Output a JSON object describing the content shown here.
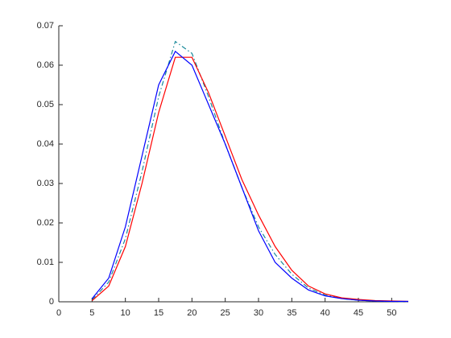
{
  "chart_data": {
    "type": "line",
    "x": [
      5,
      7.5,
      10,
      12.5,
      15,
      17.5,
      20,
      22.5,
      25,
      27.5,
      30,
      32.5,
      35,
      37.5,
      40,
      42.5,
      45,
      47.5,
      50,
      52.5
    ],
    "series": [
      {
        "color": "#1a8a9a",
        "style": "dashdot",
        "values": [
          0.0005,
          0.005,
          0.016,
          0.033,
          0.052,
          0.066,
          0.063,
          0.052,
          0.04,
          0.029,
          0.019,
          0.012,
          0.007,
          0.0035,
          0.0017,
          0.0008,
          0.0004,
          0.0002,
          0.0001,
          5e-05
        ]
      },
      {
        "color": "#ff0000",
        "style": "solid",
        "values": [
          0.0003,
          0.004,
          0.014,
          0.03,
          0.048,
          0.062,
          0.062,
          0.053,
          0.042,
          0.031,
          0.022,
          0.014,
          0.008,
          0.004,
          0.002,
          0.001,
          0.0006,
          0.0003,
          0.0002,
          0.0001
        ]
      },
      {
        "color": "#0000ff",
        "style": "solid",
        "values": [
          0.0008,
          0.006,
          0.019,
          0.037,
          0.055,
          0.0635,
          0.06,
          0.05,
          0.04,
          0.029,
          0.018,
          0.01,
          0.006,
          0.003,
          0.0015,
          0.0008,
          0.0004,
          0.0002,
          0.0001,
          0.0001
        ]
      }
    ],
    "xlim": [
      0,
      52.5
    ],
    "ylim": [
      0,
      0.07
    ],
    "xticks": [
      0,
      5,
      10,
      15,
      20,
      25,
      30,
      35,
      40,
      45,
      50
    ],
    "yticks": [
      0,
      0.01,
      0.02,
      0.03,
      0.04,
      0.05,
      0.06,
      0.07
    ],
    "grid": false
  }
}
